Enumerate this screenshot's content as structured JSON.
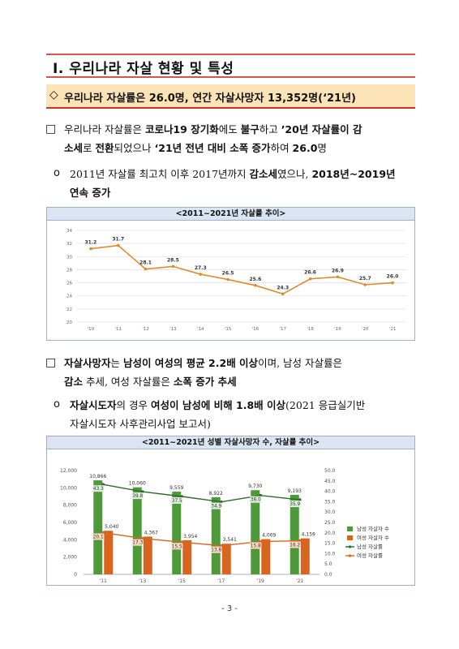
{
  "section": {
    "title": "Ⅰ. 우리나라 자살 현황 및 특성"
  },
  "headline": {
    "marker": "◇",
    "text": "우리나라 자살률은 26.0명, 연간 자살사망자 13,352명(‘21년)"
  },
  "p1": {
    "marker": "□",
    "line1": [
      {
        "t": "우리나라 자살률은 ",
        "b": false
      },
      {
        "t": "코로나19 장기화",
        "b": true
      },
      {
        "t": "에도 ",
        "b": false
      },
      {
        "t": "불구",
        "b": true
      },
      {
        "t": "하고 ",
        "b": false
      },
      {
        "t": "’20년 자살률이 감",
        "b": true
      }
    ],
    "line2": [
      {
        "t": "소세",
        "b": true
      },
      {
        "t": "로 ",
        "b": false
      },
      {
        "t": "전환",
        "b": true
      },
      {
        "t": "되었으나 ",
        "b": false
      },
      {
        "t": "‘21년 전년 대비 소폭 증가",
        "b": true
      },
      {
        "t": "하여 ",
        "b": false
      },
      {
        "t": "26.0",
        "b": true
      },
      {
        "t": "명",
        "b": false
      }
    ]
  },
  "p2": {
    "marker": "o",
    "line1": [
      {
        "t": "2011년 자살률 최고치 이후 2017년까지 ",
        "b": false
      },
      {
        "t": "감소세",
        "b": true
      },
      {
        "t": "였으나, ",
        "b": false
      },
      {
        "t": "2018년~2019년",
        "b": true
      }
    ],
    "line2": [
      {
        "t": "연속 증가",
        "b": true
      }
    ]
  },
  "chart1_title": "<2011~2021년 자살률 추이>",
  "p3": {
    "marker": "□",
    "line1": [
      {
        "t": "자살사망자",
        "b": true
      },
      {
        "t": "는 ",
        "b": false
      },
      {
        "t": "남성이 여성의 평균 2.2배 이상",
        "b": true
      },
      {
        "t": "이며, 남성 자살률은",
        "b": false
      }
    ],
    "line2": [
      {
        "t": "감소",
        "b": true
      },
      {
        "t": " 추세, 여성 자살률은 ",
        "b": false
      },
      {
        "t": "소폭 증가 추세",
        "b": true
      }
    ]
  },
  "p4": {
    "marker": "o",
    "line1": [
      {
        "t": "자살시도자",
        "b": true
      },
      {
        "t": "의 경우 ",
        "b": false
      },
      {
        "t": "여성이 남성에 비해 1.8배 이상",
        "b": true
      },
      {
        "t": "(2021 응급실기반",
        "b": false
      }
    ],
    "line2": [
      {
        "t": "자살시도자 사후관리사업 보고서)",
        "b": false
      }
    ]
  },
  "chart2_title": "<2011~2021년 성별 자살사망자 수, 자살률 추이>",
  "chart_data": [
    {
      "type": "line",
      "title": "<2011~2021년 자살률 추이>",
      "categories": [
        "'10",
        "'11",
        "'12",
        "'13",
        "'14",
        "'15",
        "'16",
        "'17",
        "'18",
        "'19",
        "'20",
        "'21"
      ],
      "series": [
        {
          "values": [
            31.2,
            31.7,
            28.1,
            28.5,
            27.3,
            26.5,
            25.6,
            24.3,
            26.6,
            26.9,
            25.7,
            26.0
          ],
          "color": "#e08a2e"
        }
      ],
      "data_labels": [
        "31.2",
        "31.7",
        "28.1",
        "28.5",
        "27.3",
        "26.5",
        "25.6",
        "24.3",
        "26.6",
        "26.9",
        "25.7",
        "26.0"
      ],
      "y_ticks": [
        20,
        22,
        24,
        26,
        28,
        30,
        32,
        34
      ],
      "ylim": [
        20,
        34
      ],
      "grid": true
    },
    {
      "type": "bar",
      "title": "<2011~2021년 성별 자살사망자 수, 자살률 추이>",
      "categories": [
        "'11",
        "'13",
        "'15",
        "'17",
        "'19",
        "'21"
      ],
      "series": [
        {
          "name": "남성 자살자 수",
          "kind": "bar",
          "axis": "left",
          "color": "#4e9a3a",
          "values": [
            10866,
            10060,
            9559,
            8922,
            9730,
            9193
          ],
          "labels": [
            "10,866",
            "10,060",
            "9,559",
            "8,922",
            "9,730",
            "9,193"
          ]
        },
        {
          "name": "여성 자살자 수",
          "kind": "bar",
          "axis": "left",
          "color": "#d8651f",
          "values": [
            5040,
            4367,
            3954,
            3541,
            4069,
            4159
          ],
          "labels": [
            "5,040",
            "4,367",
            "3,954",
            "3,541",
            "4,069",
            "4,159"
          ]
        },
        {
          "name": "남성 자살률",
          "kind": "line",
          "axis": "right",
          "color": "#2e6b2e",
          "values": [
            43.3,
            39.8,
            37.5,
            34.9,
            38.0,
            35.9
          ],
          "labels": [
            "43.3",
            "39.8",
            "37.5",
            "34.9",
            "38.0",
            "35.9"
          ]
        },
        {
          "name": "여성 자살률",
          "kind": "line",
          "axis": "right",
          "color": "#d8651f",
          "values": [
            20.1,
            17.3,
            15.5,
            13.8,
            15.8,
            16.2
          ],
          "labels": [
            "20.1",
            "17.3",
            "15.5",
            "13.8",
            "15.8",
            "16.2"
          ]
        }
      ],
      "y_left_ticks": [
        "0",
        "2,000",
        "4,000",
        "6,000",
        "8,000",
        "10,000",
        "12,000"
      ],
      "ylim_left": [
        0,
        12000
      ],
      "y_right_ticks": [
        "0.0",
        "5.0",
        "10.0",
        "15.0",
        "20.0",
        "25.0",
        "30.0",
        "35.0",
        "40.0",
        "45.0",
        "50.0"
      ],
      "ylim_right": [
        0,
        50
      ],
      "legend_position": "right",
      "grid": false
    }
  ],
  "page_number": "- 3 -"
}
